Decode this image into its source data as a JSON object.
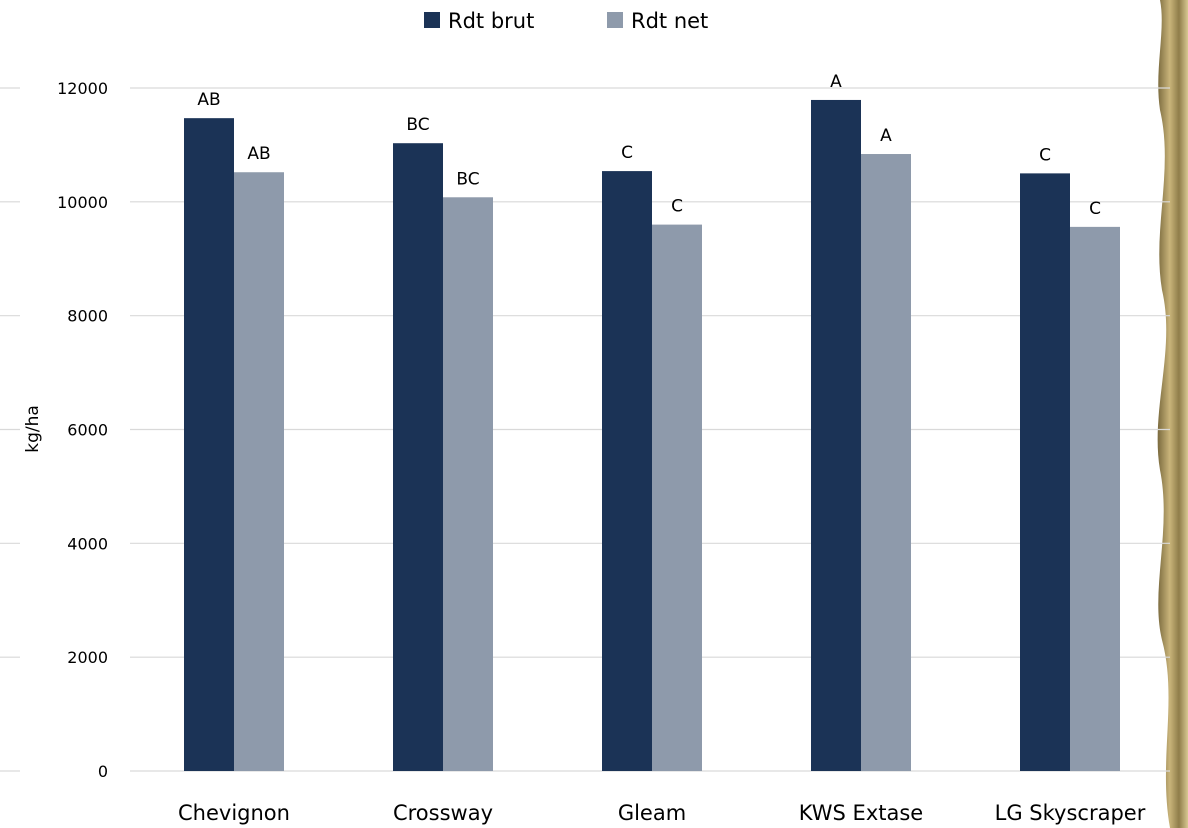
{
  "chart_data": {
    "type": "bar",
    "categories": [
      "Chevignon",
      "Crossway",
      "Gleam",
      "KWS Extase",
      "LG Skyscraper"
    ],
    "series": [
      {
        "name": "Rdt brut",
        "color": "#1b3356",
        "values": [
          11470,
          11030,
          10540,
          11790,
          10500
        ],
        "labels": [
          "AB",
          "BC",
          "C",
          "A",
          "C"
        ]
      },
      {
        "name": "Rdt net",
        "color": "#8e9aab",
        "values": [
          10520,
          10080,
          9600,
          10840,
          9560
        ],
        "labels": [
          "AB",
          "BC",
          "C",
          "A",
          "C"
        ]
      }
    ],
    "ylabel": "kg/ha",
    "xlabel": "",
    "title": "",
    "ylim": [
      0,
      12000
    ],
    "yticks": [
      0,
      2000,
      4000,
      6000,
      8000,
      10000,
      12000
    ],
    "grid": true,
    "legend": "top-center"
  }
}
